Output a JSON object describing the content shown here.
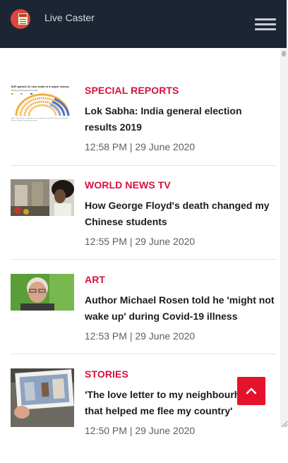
{
  "header": {
    "brand": "Live Caster",
    "logo_icon": "newspaper-icon",
    "menu_icon": "hamburger-menu-icon"
  },
  "articles": [
    {
      "category": "SPECIAL REPORTS",
      "title": "Lok Sabha: India general election results 2019",
      "time": "12:58 PM | 29 June 2020",
      "thumb": {
        "heading": "BJP gained 21 new seats in a major victory",
        "subheading": "2019 general election result",
        "footnote": "Note: The seat was cancelled in one constituency, so only 542 seats were declared",
        "source": "Source: Election Commission of India"
      }
    },
    {
      "category": "WORLD NEWS TV",
      "title": "How George Floyd's death changed my Chinese students",
      "time": "12:55 PM | 29 June 2020"
    },
    {
      "category": "ART",
      "title": "Author Michael Rosen told he 'might not wake up' during Covid-19 illness",
      "time": "12:53 PM | 29 June 2020"
    },
    {
      "category": "STORIES",
      "title": "'The love letter to my neighbourhood that helped me flee my country'",
      "time": "12:50 PM | 29 June 2020"
    }
  ],
  "back_to_top_icon": "chevron-up-icon",
  "colors": {
    "header_bg": "#1c2533",
    "accent": "#d4123b",
    "button": "#e5122e"
  }
}
